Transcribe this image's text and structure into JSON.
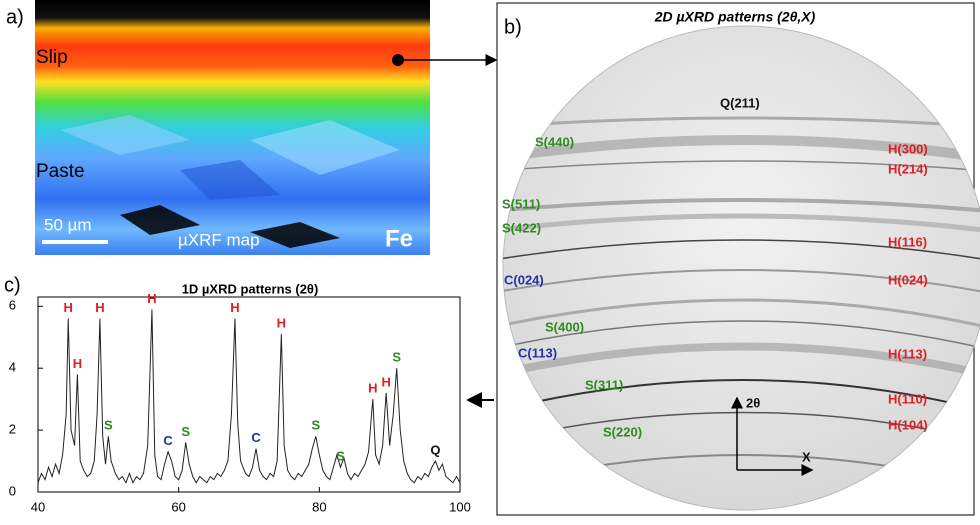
{
  "panel_a": {
    "label": "a)",
    "slip": "Slip",
    "paste": "Paste",
    "scale": "50 µm",
    "method": "µXRF map",
    "element": "Fe"
  },
  "panel_b": {
    "label": "b)",
    "title": "2D µXRD patterns (2θ,X)",
    "reflections": [
      "Q(211)",
      "S(440)",
      "H(300)",
      "H(214)",
      "S(511)",
      "S(422)",
      "H(116)",
      "C(024)",
      "H(024)",
      "S(400)",
      "C(113)",
      "H(113)",
      "S(311)",
      "H(110)",
      "S(220)",
      "H(104)"
    ],
    "axis_2theta": "2θ",
    "axis_x": "X"
  },
  "chart_data": {
    "type": "line",
    "label": "c)",
    "title": "1D µXRD patterns (2θ)",
    "x": [
      40,
      40.5,
      41,
      41.5,
      42,
      42.5,
      43,
      43.5,
      44,
      44.3,
      44.7,
      45.2,
      45.6,
      46,
      46.5,
      47,
      47.5,
      48,
      48.4,
      48.8,
      49.2,
      49.6,
      50,
      50.4,
      51,
      51.5,
      52,
      52.5,
      53,
      53.5,
      54,
      54.5,
      55,
      55.6,
      56.2,
      56.6,
      57,
      57.5,
      58,
      58.5,
      59,
      59.5,
      60,
      60.5,
      61,
      61.5,
      62,
      62.5,
      63,
      63.5,
      64,
      64.5,
      65,
      65.5,
      66,
      66.5,
      67,
      67.5,
      68,
      68.4,
      68.8,
      69.5,
      70,
      70.5,
      71,
      71.5,
      72,
      72.5,
      73,
      73.5,
      74,
      74.6,
      75,
      75.5,
      76,
      76.5,
      77,
      77.5,
      78,
      78.5,
      79,
      79.5,
      80,
      80.5,
      81,
      81.5,
      82,
      82.5,
      83,
      83.5,
      84,
      84.5,
      85,
      85.5,
      86,
      86.5,
      87,
      87.6,
      88,
      88.5,
      89,
      89.5,
      90,
      90.5,
      91,
      91.5,
      92,
      92.5,
      93,
      93.5,
      94,
      94.5,
      95,
      95.5,
      96,
      96.5,
      97,
      97.5,
      98,
      98.5,
      99,
      99.5,
      100
    ],
    "series": [
      {
        "color": "#222222",
        "values": [
          0.3,
          0.6,
          0.4,
          0.8,
          0.5,
          0.9,
          0.6,
          1.2,
          2.5,
          5.6,
          2.0,
          1.5,
          3.8,
          1.0,
          0.7,
          0.5,
          0.6,
          1.0,
          2.5,
          5.6,
          1.8,
          0.9,
          1.8,
          1.0,
          0.6,
          0.4,
          0.5,
          0.3,
          0.6,
          0.3,
          0.5,
          0.4,
          0.6,
          1.5,
          5.9,
          1.2,
          0.5,
          0.4,
          0.9,
          1.3,
          1.0,
          0.5,
          0.4,
          0.7,
          1.6,
          0.9,
          0.5,
          0.3,
          0.5,
          0.4,
          0.3,
          0.5,
          0.4,
          0.6,
          0.5,
          0.7,
          1.0,
          2.5,
          5.6,
          2.2,
          1.0,
          0.6,
          0.5,
          0.8,
          1.4,
          0.7,
          0.5,
          0.4,
          0.6,
          0.5,
          1.0,
          5.1,
          1.5,
          0.7,
          0.5,
          0.4,
          0.6,
          0.5,
          0.7,
          0.9,
          1.4,
          1.8,
          1.2,
          0.7,
          0.5,
          0.4,
          0.8,
          1.2,
          0.8,
          1.1,
          0.6,
          0.4,
          0.6,
          0.5,
          0.7,
          0.9,
          1.3,
          3.0,
          1.2,
          0.9,
          1.5,
          3.2,
          1.5,
          2.5,
          4.0,
          2.0,
          1.0,
          0.6,
          0.4,
          0.3,
          0.5,
          0.4,
          0.6,
          0.5,
          0.8,
          1.0,
          0.7,
          0.9,
          0.5,
          0.4,
          0.3,
          0.5,
          0.3
        ]
      }
    ],
    "peak_labels": [
      {
        "label": "H",
        "x": 44.3
      },
      {
        "label": "H",
        "x": 45.6
      },
      {
        "label": "H",
        "x": 48.8
      },
      {
        "label": "S",
        "x": 50
      },
      {
        "label": "H",
        "x": 56.2
      },
      {
        "label": "C",
        "x": 58.5
      },
      {
        "label": "S",
        "x": 61
      },
      {
        "label": "H",
        "x": 68
      },
      {
        "label": "C",
        "x": 71
      },
      {
        "label": "H",
        "x": 74.6
      },
      {
        "label": "S",
        "x": 79.5
      },
      {
        "label": "S",
        "x": 83
      },
      {
        "label": "H",
        "x": 87.6
      },
      {
        "label": "H",
        "x": 89.5
      },
      {
        "label": "S",
        "x": 91
      },
      {
        "label": "Q",
        "x": 96.5
      }
    ],
    "label_colors": {
      "H": "#e02020",
      "S": "#2e8b1e",
      "C": "#2233aa",
      "Q": "#111111"
    },
    "xlim": [
      40,
      100
    ],
    "xticks": [
      40,
      60,
      80,
      100
    ],
    "ylim": [
      0,
      6.3
    ],
    "yticks": [
      0,
      2,
      4,
      6
    ]
  }
}
